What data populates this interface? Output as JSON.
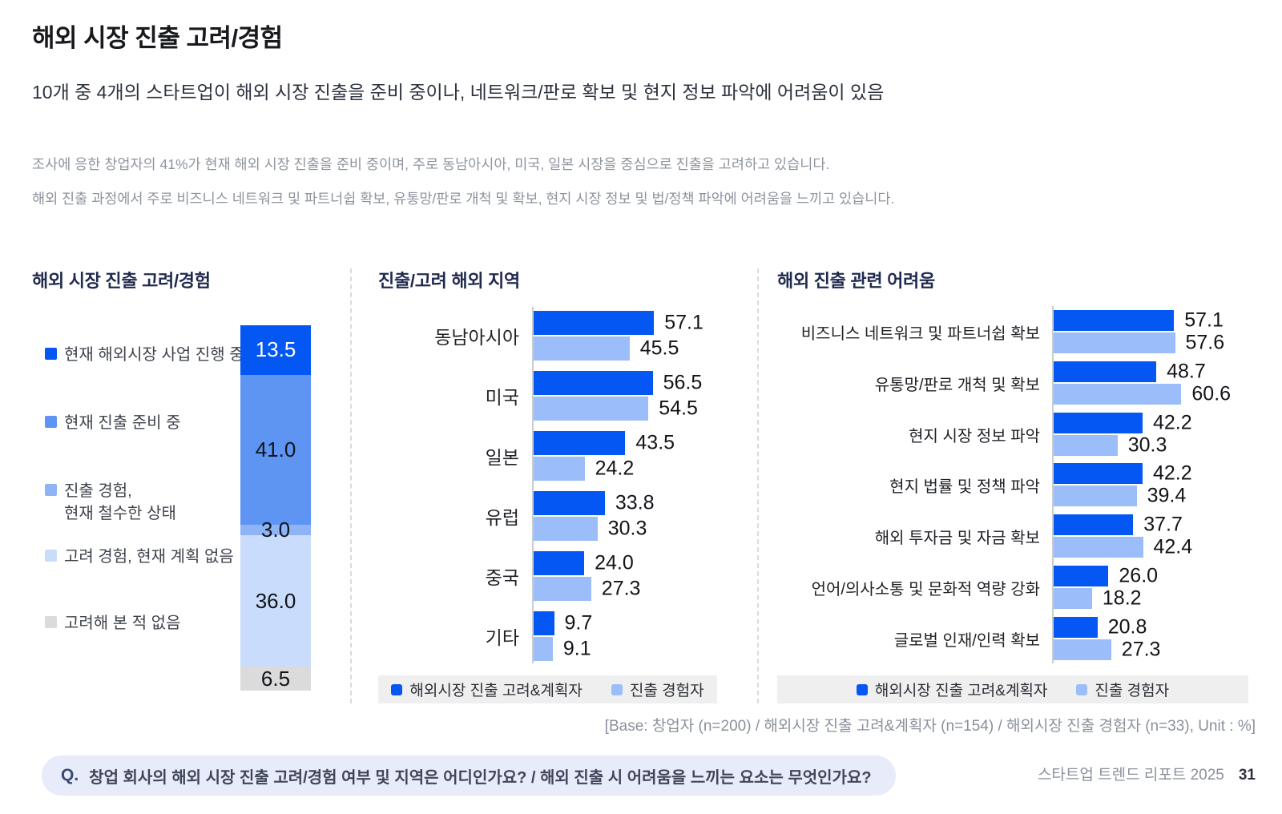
{
  "header": {
    "title": "해외 시장 진출 고려/경험",
    "subtitle": "10개 중 4개의 스타트업이 해외 시장 진출을 준비 중이나, 네트워크/판로 확보 및 현지 정보 파악에 어려움이 있음",
    "body_lines": [
      "조사에 응한 창업자의 41%가 현재 해외 시장 진출을 준비 중이며, 주로 동남아시아, 미국, 일본 시장을 중심으로 진출을 고려하고 있습니다.",
      "해외 진출 과정에서 주로 비즈니스 네트워크 및 파트너쉽 확보, 유통망/판로 개척 및 확보, 현지 시장 정보 및 법/정책 파악에 어려움을 느끼고 있습니다."
    ]
  },
  "chart_data": [
    {
      "type": "bar",
      "variant": "stacked-column",
      "title": "해외 시장 진출 고려/경험",
      "unit": "%",
      "categories": [
        "현재 해외시장 사업 진행 중",
        "현재 진출 준비 중",
        "진출 경험,\n현재 철수한 상태",
        "고려 경험, 현재 계획 없음",
        "고려해 본 적 없음"
      ],
      "values": [
        13.5,
        41.0,
        3.0,
        36.0,
        6.5
      ],
      "colors": [
        "#0457F2",
        "#5E95F2",
        "#8FB4F6",
        "#C9DCFB",
        "#DBDBDB"
      ],
      "value_label_colors": [
        "#FFFFFF",
        "#111418",
        "#111418",
        "#111418",
        "#111418"
      ]
    },
    {
      "type": "bar",
      "variant": "grouped-horizontal",
      "title": "진출/고려 해외 지역",
      "unit": "%",
      "categories": [
        "동남아시아",
        "미국",
        "일본",
        "유럽",
        "중국",
        "기타"
      ],
      "series": [
        {
          "name": "해외시장 진출 고려&계획자",
          "color": "#0457F2",
          "values": [
            57.1,
            56.5,
            43.5,
            33.8,
            24.0,
            9.7
          ]
        },
        {
          "name": "진출 경험자",
          "color": "#9BBDF9",
          "values": [
            45.5,
            54.5,
            24.2,
            30.3,
            27.3,
            9.1
          ]
        }
      ],
      "legend_position": "bottom"
    },
    {
      "type": "bar",
      "variant": "grouped-horizontal",
      "title": "해외 진출 관련 어려움",
      "unit": "%",
      "categories": [
        "비즈니스 네트워크 및 파트너쉽 확보",
        "유통망/판로 개척 및 확보",
        "현지 시장 정보 파악",
        "현지 법률 및 정책 파악",
        "해외 투자금 및 자금 확보",
        "언어/의사소통 및 문화적 역량 강화",
        "글로벌 인재/인력 확보"
      ],
      "series": [
        {
          "name": "해외시장 진출 고려&계획자",
          "color": "#0457F2",
          "values": [
            57.1,
            48.7,
            42.2,
            42.2,
            37.7,
            26.0,
            20.8
          ]
        },
        {
          "name": "진출 경험자",
          "color": "#9BBDF9",
          "values": [
            57.6,
            60.6,
            30.3,
            39.4,
            42.4,
            18.2,
            27.3
          ]
        }
      ],
      "legend_position": "bottom"
    }
  ],
  "footer": {
    "base_note": "[Base: 창업자 (n=200) / 해외시장 진출 고려&계획자 (n=154) / 해외시장 진출 경험자 (n=33), Unit : %]",
    "question_prefix": "Q.",
    "question_text": "창업 회사의 해외 시장 진출 고려/경험 여부 및 지역은 어디인가요? / 해외 진출 시 어려움을 느끼는 요소는 무엇인가요?",
    "report_name": "스타트업 트렌드 리포트 2025",
    "page_number": "31"
  },
  "colors": {
    "accent_blue": "#0457F2",
    "light_blue": "#9BBDF9",
    "legend_band_bg": "#EFEFEF",
    "question_pill_bg": "#E7EBFA"
  }
}
